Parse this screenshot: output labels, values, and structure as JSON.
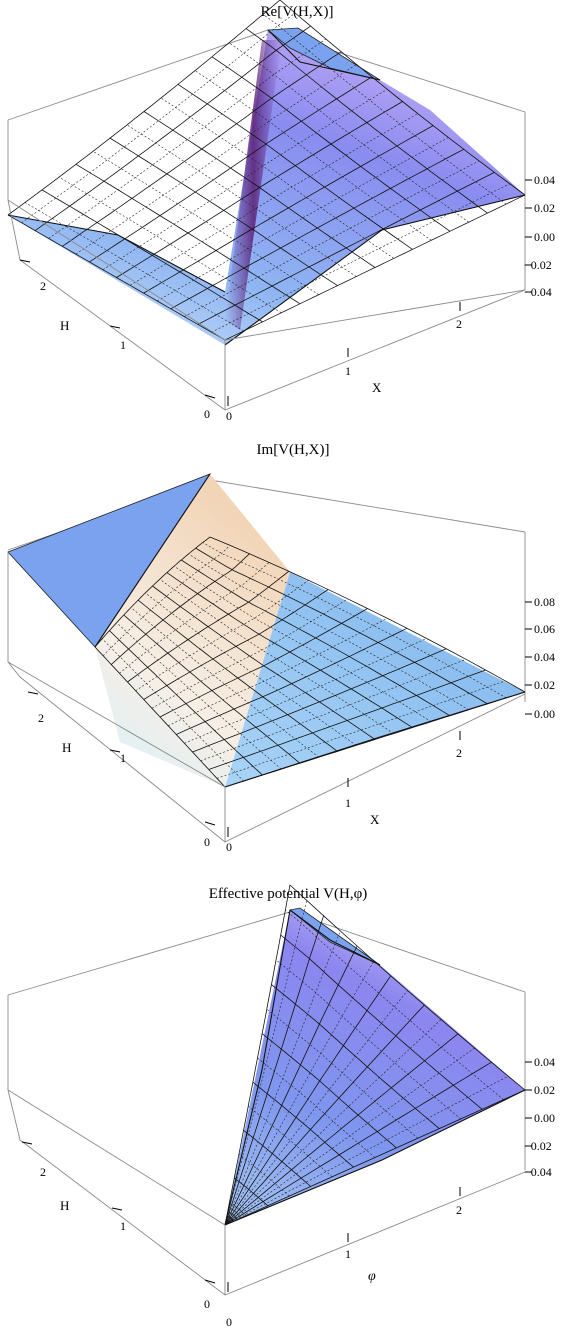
{
  "chart_data": [
    {
      "type": "surface3d",
      "title": "Re[V(H,X)]",
      "x_axis_label": "X",
      "y_axis_label": "H",
      "x_ticks": [
        "0",
        "1",
        "2"
      ],
      "y_ticks": [
        "0",
        "1",
        "2"
      ],
      "z_ticks": [
        "0.04",
        "0.02",
        "0.00",
        "−0.02",
        "−0.04"
      ],
      "x_range": [
        0,
        2.5
      ],
      "y_range": [
        0,
        2.5
      ],
      "z_range": [
        -0.04,
        0.04
      ],
      "shading": "blue to purple, dark red-purple ridge along the diagonal H = X",
      "clipped_top": true
    },
    {
      "type": "surface3d",
      "title": "Im[V(H,X)]",
      "x_axis_label": "X",
      "y_axis_label": "H",
      "x_ticks": [
        "0",
        "1",
        "2"
      ],
      "y_ticks": [
        "0",
        "1",
        "2"
      ],
      "z_ticks": [
        "0.08",
        "0.06",
        "0.04",
        "0.02",
        "0.00"
      ],
      "x_range": [
        0,
        2.5
      ],
      "y_range": [
        0,
        2.5
      ],
      "z_range": [
        0,
        0.08
      ],
      "shading": "flat blue for X > H, rising peach/cream surface for X < H",
      "clipped_top": true
    },
    {
      "type": "surface3d",
      "title": "Effective potential V(H,φ)",
      "x_axis_label": "φ",
      "y_axis_label": "H",
      "x_ticks": [
        "0",
        "1",
        "2"
      ],
      "y_ticks": [
        "0",
        "1",
        "2"
      ],
      "z_ticks": [
        "0.04",
        "0.02",
        "0.00",
        "−0.02",
        "−0.04"
      ],
      "x_range": [
        0,
        2.5
      ],
      "y_range": [
        0,
        2.5
      ],
      "z_range": [
        -0.04,
        0.04
      ],
      "shading": "blue to purple, surface defined only for φ > H",
      "clipped_top": true
    }
  ],
  "colors": {
    "surface_blue": "#7ea3ec",
    "surface_light": "#cfe4f8",
    "surface_purple": "#9a88f0",
    "ridge": "#5a2a7a",
    "peach": "#f4dcc4",
    "cap_blue": "#7aa2ee"
  }
}
